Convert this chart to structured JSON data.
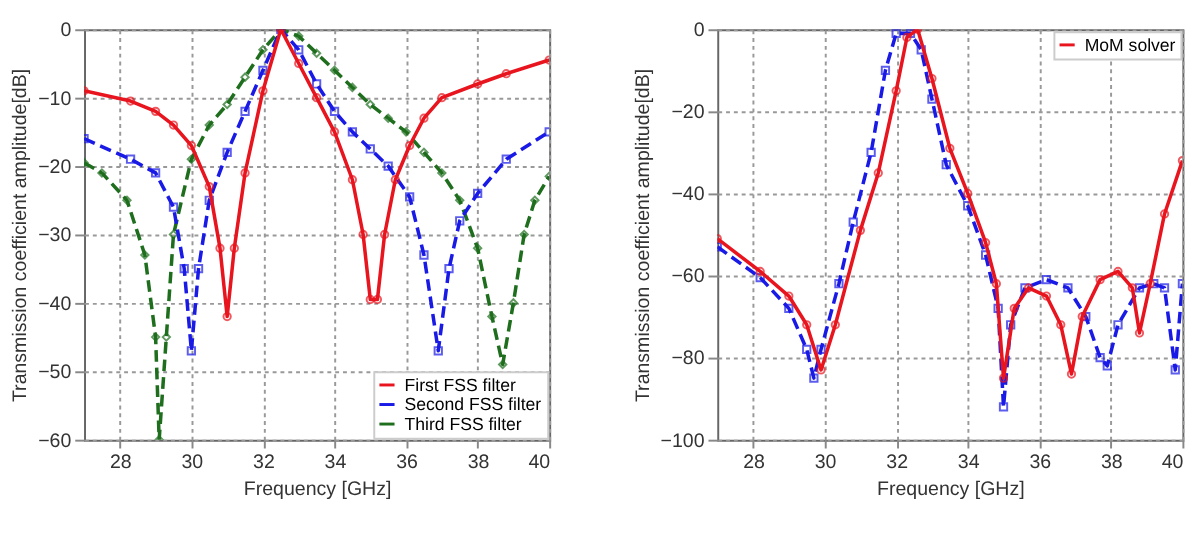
{
  "chart_data": [
    {
      "type": "line",
      "xlabel": "Frequency [GHz]",
      "ylabel": "Transmission coefficient amplitude[dB]",
      "xlim": [
        27,
        40
      ],
      "ylim": [
        -60,
        0
      ],
      "xticks": [
        28,
        30,
        32,
        34,
        36,
        38,
        40
      ],
      "yticks": [
        -60,
        -50,
        -40,
        -30,
        -20,
        -10,
        0
      ],
      "grid": true,
      "legend": "bottom right",
      "series": [
        {
          "name": "First FSS filter",
          "color": "#e8141e",
          "marker": "circle",
          "line_style": "solid",
          "x": [
            27,
            28.3,
            29,
            29.5,
            30,
            30.5,
            30.8,
            31,
            31.2,
            31.5,
            32,
            32.5,
            33,
            33.5,
            34,
            34.5,
            34.8,
            35,
            35.2,
            35.4,
            35.7,
            36.1,
            36.5,
            37,
            38,
            38.8,
            40
          ],
          "values": [
            -9,
            -10.5,
            -12,
            -14,
            -17,
            -23,
            -32,
            -42,
            -32,
            -21,
            -9,
            0,
            -5,
            -10,
            -15,
            -22,
            -30,
            -39.5,
            -39.5,
            -30,
            -22,
            -17,
            -13,
            -10,
            -8,
            -6.5,
            -4.5
          ]
        },
        {
          "name": "Second FSS filter",
          "color": "#1a1ae6",
          "marker": "square",
          "line_style": "dashed",
          "x": [
            27,
            28.3,
            29,
            29.5,
            29.8,
            30,
            30.2,
            30.5,
            31,
            31.5,
            32,
            32.5,
            33,
            33.5,
            34,
            34.5,
            35,
            35.5,
            36.1,
            36.5,
            36.9,
            37.2,
            37.5,
            38,
            38.8,
            40
          ],
          "values": [
            -16,
            -19,
            -21,
            -26,
            -35,
            -47,
            -35,
            -25,
            -18,
            -12,
            -6,
            0,
            -3,
            -8,
            -12,
            -15,
            -17.5,
            -20,
            -24.5,
            -33,
            -47,
            -35,
            -28,
            -24,
            -19,
            -15
          ]
        },
        {
          "name": "Third FSS filter",
          "color": "#1e6e1e",
          "marker": "diamond",
          "line_style": "dashed",
          "x": [
            27,
            27.5,
            28.2,
            28.7,
            29,
            29.1,
            29.3,
            29.5,
            30,
            30.5,
            31,
            31.5,
            32,
            32.5,
            33,
            33.5,
            34,
            34.5,
            35,
            35.5,
            36,
            36.5,
            37,
            37.5,
            38,
            38.4,
            38.7,
            39,
            39.3,
            39.6,
            40
          ],
          "values": [
            -19.5,
            -21,
            -25,
            -33,
            -45,
            -60,
            -45,
            -30,
            -19,
            -14,
            -11,
            -7,
            -3,
            0,
            -1,
            -3.5,
            -6,
            -8.5,
            -11,
            -13,
            -15,
            -18,
            -21,
            -25,
            -32,
            -42,
            -49,
            -40,
            -30,
            -25,
            -21.5
          ]
        }
      ]
    },
    {
      "type": "line",
      "xlabel": "Frequency [GHz]",
      "ylabel": "Transmission coefficient amplitude[dB]",
      "xlim": [
        27,
        40
      ],
      "ylim": [
        -100,
        0
      ],
      "xticks": [
        28,
        30,
        32,
        34,
        36,
        38,
        40
      ],
      "yticks": [
        -100,
        -80,
        -60,
        -40,
        -20,
        0
      ],
      "grid": true,
      "legend": "top right",
      "series": [
        {
          "name": "MoM solver",
          "color": "#e8141e",
          "marker": "circle",
          "line_style": "solid",
          "x": [
            27,
            28.2,
            29,
            29.5,
            29.9,
            30.3,
            31,
            31.5,
            32,
            32.3,
            32.6,
            33,
            33.5,
            34,
            34.5,
            34.8,
            35,
            35.3,
            35.7,
            36.2,
            36.6,
            36.9,
            37.2,
            37.7,
            38.2,
            38.6,
            38.8,
            39.1,
            39.5,
            40
          ],
          "values": [
            -51,
            -59,
            -65,
            -72,
            -83,
            -72,
            -49,
            -35,
            -15,
            -2,
            0,
            -12,
            -29,
            -40,
            -52,
            -62,
            -85,
            -68,
            -63,
            -65,
            -72,
            -84,
            -70,
            -61,
            -59,
            -63,
            -74,
            -62,
            -45,
            -32
          ]
        },
        {
          "color": "#1a1ae6",
          "marker": "square",
          "line_style": "dashed",
          "x": [
            27,
            28.2,
            29,
            29.5,
            29.7,
            29.9,
            30.4,
            30.8,
            31.3,
            31.7,
            32,
            32.4,
            32.7,
            33,
            33.4,
            34,
            34.5,
            34.85,
            35,
            35.2,
            35.6,
            36.2,
            36.8,
            37.3,
            37.7,
            37.9,
            38.2,
            38.8,
            39.2,
            39.5,
            39.8,
            40
          ],
          "values": [
            -53,
            -60.5,
            -68,
            -78,
            -85,
            -78,
            -62,
            -47,
            -30,
            -10,
            -1,
            -1,
            -5,
            -17,
            -33,
            -43,
            -55,
            -68,
            -92,
            -72,
            -63,
            -61,
            -63,
            -70,
            -80,
            -82,
            -72,
            -63,
            -62,
            -63,
            -83,
            -62
          ]
        }
      ]
    }
  ]
}
